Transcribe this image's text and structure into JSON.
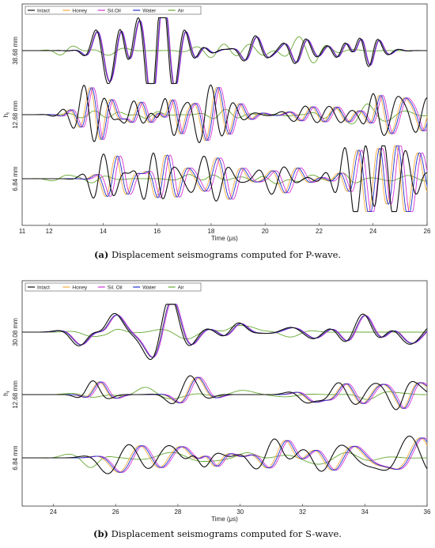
{
  "colors": {
    "Intact": "#111111",
    "Honey": "#f2a93b",
    "Sil. Oil": "#d633d6",
    "Water": "#2233cc",
    "Air": "#66a833"
  },
  "chart_data": [
    {
      "type": "line",
      "title": "",
      "xlabel": "Time (μs)",
      "ylabel": "h_r",
      "xlim": [
        11,
        26
      ],
      "xticks": [
        "12",
        "14",
        "16",
        "18",
        "20",
        "22",
        "24",
        "26"
      ],
      "xtick_first_label": "11",
      "legend": [
        "Intact",
        "Honey",
        "Sil.Oil",
        "Water",
        "Air"
      ],
      "legend_position": "top-left",
      "rows": [
        "38.68 mm",
        "12.68 mm",
        "6.84 mm"
      ],
      "grid": false,
      "caption_label": "(a)",
      "caption_text": " Displacement seismograms computed for P-wave."
    },
    {
      "type": "line",
      "title": "",
      "xlabel": "Time (μs)",
      "ylabel": "h_r",
      "xlim": [
        23,
        36
      ],
      "xticks": [
        "24",
        "26",
        "28",
        "30",
        "32",
        "34",
        "36"
      ],
      "legend": [
        "Intact",
        "Honey",
        "Sil. Oil",
        "Water",
        "Air"
      ],
      "legend_position": "top-left",
      "rows": [
        "30.08 mm",
        "12.68 mm",
        "6.84 mm"
      ],
      "grid": false,
      "caption_label": "(b)",
      "caption_text": " Displacement seismograms computed for S-wave."
    }
  ]
}
